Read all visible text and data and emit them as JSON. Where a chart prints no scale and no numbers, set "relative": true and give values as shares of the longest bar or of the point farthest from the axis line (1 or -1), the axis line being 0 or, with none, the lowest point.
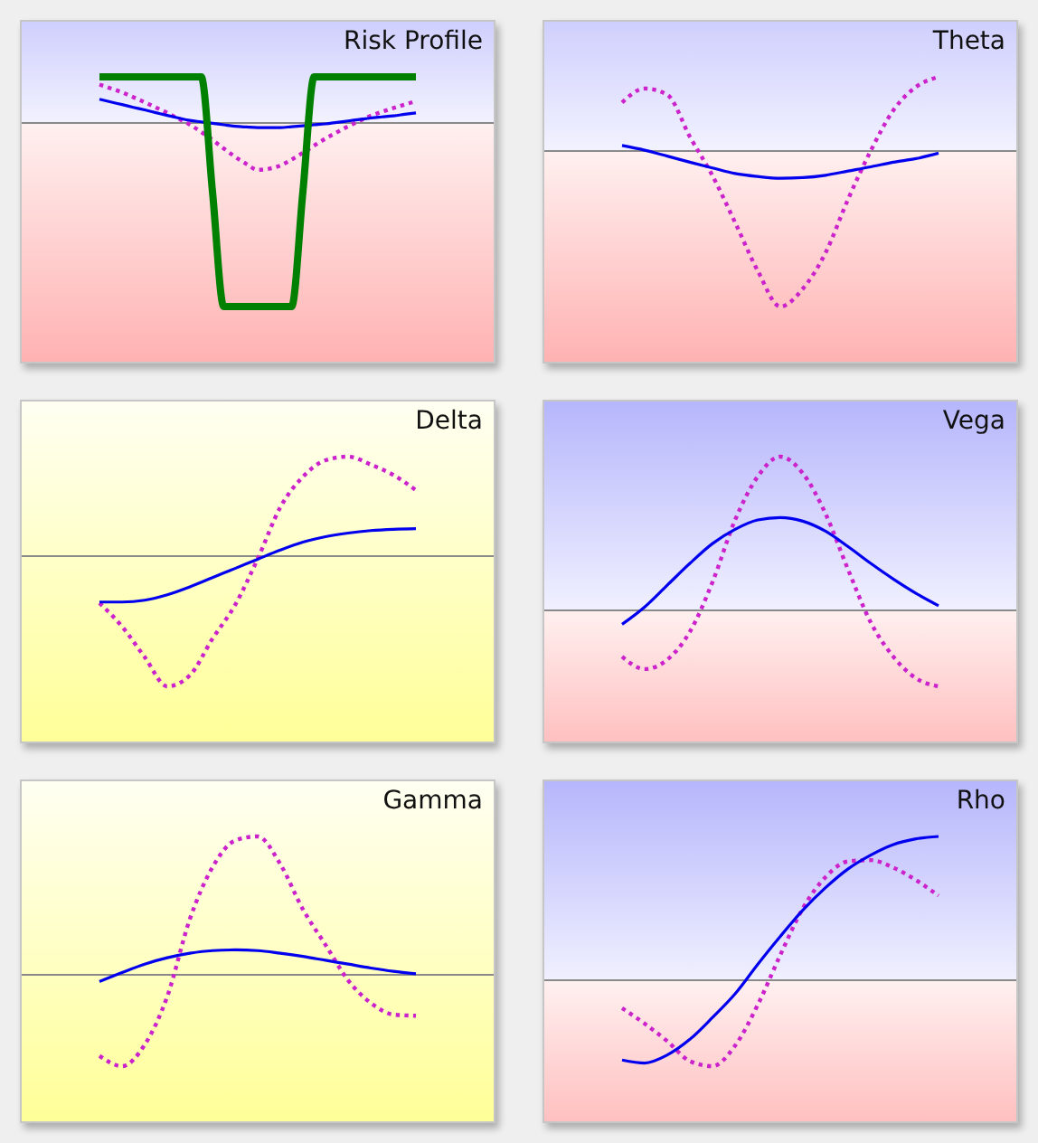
{
  "chart_data": [
    {
      "type": "line",
      "title": "Risk Profile",
      "relative": true,
      "categories": [
        null,
        null,
        null,
        null,
        null,
        null,
        null,
        null,
        null,
        null,
        null,
        null,
        null,
        null,
        null,
        null,
        null,
        null,
        null,
        null,
        null,
        null,
        null,
        null,
        null,
        null,
        null,
        null,
        null
      ],
      "series": [
        {
          "color": "#cc22cc",
          "line_style": "dotted",
          "values": [
            0.208,
            0.187,
            0.166,
            0.139,
            0.112,
            0.083,
            0.054,
            0.022,
            -0.01,
            -0.05,
            -0.093,
            -0.14,
            -0.185,
            -0.224,
            -0.256,
            -0.25,
            -0.233,
            -0.2,
            -0.163,
            -0.124,
            -0.086,
            -0.052,
            -0.019,
            0.01,
            0.038,
            0.06,
            0.08,
            0.099,
            0.118
          ]
        },
        {
          "color": "#0000ee",
          "line_style": "solid",
          "values": [
            0.128,
            0.113,
            0.099,
            0.084,
            0.07,
            0.055,
            0.04,
            0.026,
            0.013,
            0.005,
            -0.003,
            -0.011,
            -0.019,
            -0.023,
            -0.026,
            -0.026,
            -0.026,
            -0.021,
            -0.016,
            -0.011,
            -0.006,
            0.002,
            0.01,
            0.018,
            0.026,
            0.032,
            0.038,
            0.046,
            0.054
          ]
        },
        {
          "color": "#008000",
          "line_style": "solid",
          "values": [
            0.25,
            0.25,
            0.25,
            0.25,
            0.25,
            0.25,
            0.25,
            0.25,
            0.25,
            0.25,
            -0.375,
            -1,
            -1,
            -1,
            -1,
            -1,
            -1,
            -1,
            -0.375,
            0.25,
            0.25,
            0.25,
            0.25,
            0.25,
            0.25,
            0.25,
            0.25,
            0.25,
            0.25
          ]
        }
      ]
    },
    {
      "type": "line",
      "title": "Theta",
      "relative": true,
      "categories": [
        null,
        null,
        null,
        null,
        null,
        null,
        null,
        null,
        null,
        null,
        null,
        null,
        null,
        null,
        null
      ],
      "series": [
        {
          "color": "#cc22cc",
          "line_style": "dotted",
          "values": [
            0.31,
            0.4,
            0.36,
            0.09,
            -0.16,
            -0.46,
            -0.77,
            -1,
            -0.885,
            -0.655,
            -0.31,
            0.0,
            0.26,
            0.41,
            0.475
          ]
        },
        {
          "color": "#0000ee",
          "line_style": "solid",
          "values": [
            0.034,
            0.004,
            -0.034,
            -0.073,
            -0.11,
            -0.146,
            -0.165,
            -0.176,
            -0.172,
            -0.157,
            -0.13,
            -0.103,
            -0.073,
            -0.05,
            -0.015
          ]
        }
      ]
    },
    {
      "type": "line",
      "title": "Delta",
      "relative": true,
      "categories": [
        null,
        null,
        null,
        null,
        null,
        null,
        null,
        null,
        null,
        null,
        null,
        null,
        null,
        null,
        null
      ],
      "series": [
        {
          "color": "#cc22cc",
          "line_style": "dotted",
          "values": [
            -0.36,
            -0.54,
            -0.775,
            -1,
            -0.915,
            -0.634,
            -0.375,
            -0.02,
            0.375,
            0.61,
            0.737,
            0.765,
            0.704,
            0.624,
            0.507
          ]
        },
        {
          "color": "#0000ee",
          "line_style": "solid",
          "values": [
            -0.352,
            -0.352,
            -0.338,
            -0.296,
            -0.235,
            -0.164,
            -0.094,
            -0.023,
            0.047,
            0.108,
            0.15,
            0.178,
            0.197,
            0.207,
            0.211
          ]
        }
      ]
    },
    {
      "type": "line",
      "title": "Vega",
      "relative": true,
      "categories": [
        null,
        null,
        null,
        null,
        null,
        null,
        null,
        null,
        null,
        null,
        null,
        null,
        null,
        null,
        null
      ],
      "series": [
        {
          "color": "#cc22cc",
          "line_style": "dotted",
          "values": [
            -0.304,
            -0.385,
            -0.324,
            -0.142,
            0.182,
            0.587,
            0.87,
            1.0,
            0.89,
            0.628,
            0.263,
            -0.081,
            -0.304,
            -0.445,
            -0.498
          ]
        },
        {
          "color": "#0000ee",
          "line_style": "solid",
          "values": [
            -0.093,
            0.02,
            0.162,
            0.304,
            0.433,
            0.526,
            0.587,
            0.603,
            0.579,
            0.514,
            0.413,
            0.304,
            0.202,
            0.109,
            0.028
          ]
        }
      ]
    },
    {
      "type": "line",
      "title": "Gamma",
      "relative": true,
      "categories": [
        null,
        null,
        null,
        null,
        null,
        null,
        null,
        null,
        null,
        null,
        null,
        null,
        null,
        null,
        null
      ],
      "series": [
        {
          "color": "#cc22cc",
          "line_style": "dotted",
          "values": [
            -0.589,
            -0.664,
            -0.509,
            -0.159,
            0.402,
            0.776,
            0.97,
            1.0,
            0.799,
            0.472,
            0.215,
            -0.042,
            -0.206,
            -0.29,
            -0.299
          ]
        },
        {
          "color": "#0000ee",
          "line_style": "solid",
          "values": [
            -0.051,
            0.014,
            0.075,
            0.121,
            0.154,
            0.173,
            0.178,
            0.173,
            0.154,
            0.131,
            0.103,
            0.075,
            0.047,
            0.023,
            0.005
          ]
        }
      ]
    },
    {
      "type": "line",
      "title": "Rho",
      "relative": true,
      "categories": [
        null,
        null,
        null,
        null,
        null,
        null,
        null,
        null,
        null,
        null,
        null,
        null,
        null,
        null,
        null
      ],
      "series": [
        {
          "color": "#cc22cc",
          "line_style": "dotted",
          "values": [
            -0.196,
            -0.304,
            -0.426,
            -0.565,
            -0.6,
            -0.457,
            -0.174,
            0.174,
            0.5,
            0.717,
            0.826,
            0.835,
            0.783,
            0.696,
            0.587
          ]
        },
        {
          "color": "#0000ee",
          "line_style": "solid",
          "values": [
            -0.557,
            -0.578,
            -0.522,
            -0.413,
            -0.261,
            -0.096,
            0.109,
            0.304,
            0.487,
            0.643,
            0.774,
            0.87,
            0.943,
            0.983,
            1.0
          ]
        }
      ]
    }
  ]
}
